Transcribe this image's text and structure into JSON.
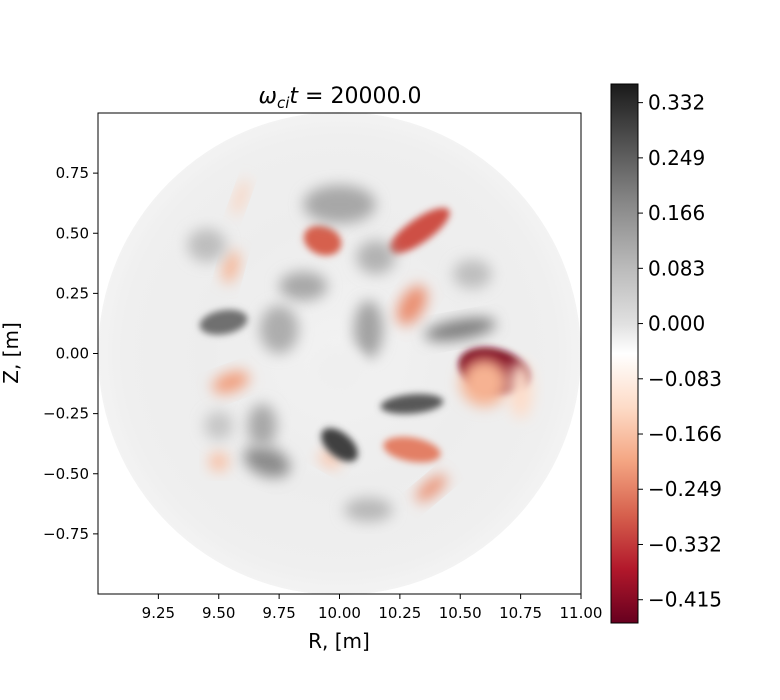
{
  "chart_data": {
    "type": "heatmap",
    "title": {
      "omega": "ω",
      "sub": "ci",
      "t": "t",
      "eq": " = 20000.0"
    },
    "xlabel": "R, [m]",
    "ylabel": "Z, [m]",
    "xlim": [
      9.0,
      11.0
    ],
    "ylim": [
      -1.0,
      1.0
    ],
    "xticks": [
      9.25,
      9.5,
      9.75,
      10.0,
      10.25,
      10.5,
      10.75,
      11.0
    ],
    "xtick_labels": [
      "9.25",
      "9.50",
      "9.75",
      "10.00",
      "10.25",
      "10.50",
      "10.75",
      "11.00"
    ],
    "yticks": [
      0.75,
      0.5,
      0.25,
      0.0,
      -0.25,
      -0.5,
      -0.75
    ],
    "ytick_labels": [
      "0.75",
      "0.50",
      "0.25",
      "0.00",
      "−0.25",
      "−0.50",
      "−0.75"
    ],
    "domain": {
      "shape": "circle",
      "center": [
        10.0,
        0.0
      ],
      "radius": 1.0
    },
    "colorbar": {
      "min": -0.45,
      "max": 0.36,
      "ticks": [
        0.332,
        0.249,
        0.166,
        0.083,
        0.0,
        -0.083,
        -0.166,
        -0.249,
        -0.332,
        -0.415
      ],
      "tick_labels": [
        "0.332",
        "0.249",
        "0.166",
        "0.083",
        "0.000",
        "−0.083",
        "−0.166",
        "−0.249",
        "−0.332",
        "−0.415"
      ],
      "colormap": "RdGy",
      "colors": {
        "max": "#1a1a1a",
        "mid": "#ffffff",
        "min": "#67001f"
      }
    },
    "features": [
      {
        "kind": "negative",
        "center": [
          10.64,
          -0.07
        ],
        "rx": 0.15,
        "ry": 0.09,
        "angle": 15,
        "value": -0.42
      },
      {
        "kind": "negative",
        "center": [
          10.6,
          -0.12
        ],
        "rx": 0.1,
        "ry": 0.1,
        "angle": 0,
        "value": -0.15
      },
      {
        "kind": "negative",
        "center": [
          10.33,
          0.51
        ],
        "rx": 0.15,
        "ry": 0.05,
        "angle": -35,
        "value": -0.28
      },
      {
        "kind": "negative",
        "center": [
          9.93,
          0.47
        ],
        "rx": 0.08,
        "ry": 0.06,
        "angle": 20,
        "value": -0.26
      },
      {
        "kind": "negative",
        "center": [
          10.3,
          0.2
        ],
        "rx": 0.09,
        "ry": 0.05,
        "angle": -60,
        "value": -0.2
      },
      {
        "kind": "negative",
        "center": [
          10.3,
          -0.4
        ],
        "rx": 0.12,
        "ry": 0.05,
        "angle": 10,
        "value": -0.22
      },
      {
        "kind": "negative",
        "center": [
          10.38,
          -0.56
        ],
        "rx": 0.08,
        "ry": 0.03,
        "angle": -40,
        "value": -0.2
      },
      {
        "kind": "negative",
        "center": [
          9.55,
          -0.12
        ],
        "rx": 0.08,
        "ry": 0.04,
        "angle": -20,
        "value": -0.18
      },
      {
        "kind": "negative",
        "center": [
          9.55,
          0.36
        ],
        "rx": 0.07,
        "ry": 0.03,
        "angle": -75,
        "value": -0.15
      },
      {
        "kind": "negative",
        "center": [
          9.59,
          0.65
        ],
        "rx": 0.08,
        "ry": 0.02,
        "angle": -70,
        "value": -0.1
      },
      {
        "kind": "negative",
        "center": [
          9.5,
          -0.45
        ],
        "rx": 0.04,
        "ry": 0.04,
        "angle": 0,
        "value": -0.13
      },
      {
        "kind": "negative",
        "center": [
          9.96,
          -0.44
        ],
        "rx": 0.05,
        "ry": 0.03,
        "angle": 30,
        "value": -0.12
      },
      {
        "kind": "negative",
        "center": [
          10.75,
          -0.15
        ],
        "rx": 0.05,
        "ry": 0.12,
        "angle": 0,
        "value": -0.08
      },
      {
        "kind": "positive",
        "center": [
          10.0,
          -0.38
        ],
        "rx": 0.09,
        "ry": 0.05,
        "angle": 40,
        "value": 0.3
      },
      {
        "kind": "positive",
        "center": [
          10.3,
          -0.21
        ],
        "rx": 0.13,
        "ry": 0.04,
        "angle": -5,
        "value": 0.26
      },
      {
        "kind": "positive",
        "center": [
          9.52,
          0.13
        ],
        "rx": 0.1,
        "ry": 0.05,
        "angle": -10,
        "value": 0.22
      },
      {
        "kind": "positive",
        "center": [
          10.5,
          0.1
        ],
        "rx": 0.15,
        "ry": 0.04,
        "angle": -10,
        "value": 0.2
      },
      {
        "kind": "positive",
        "center": [
          9.7,
          -0.45
        ],
        "rx": 0.1,
        "ry": 0.06,
        "angle": 20,
        "value": 0.17
      },
      {
        "kind": "positive",
        "center": [
          10.0,
          0.62
        ],
        "rx": 0.15,
        "ry": 0.08,
        "angle": 0,
        "value": 0.12
      },
      {
        "kind": "positive",
        "center": [
          9.85,
          0.28
        ],
        "rx": 0.1,
        "ry": 0.06,
        "angle": 0,
        "value": 0.12
      },
      {
        "kind": "positive",
        "center": [
          10.12,
          0.1
        ],
        "rx": 0.06,
        "ry": 0.12,
        "angle": 0,
        "value": 0.13
      },
      {
        "kind": "positive",
        "center": [
          10.15,
          0.4
        ],
        "rx": 0.08,
        "ry": 0.07,
        "angle": 0,
        "value": 0.1
      },
      {
        "kind": "positive",
        "center": [
          9.75,
          0.1
        ],
        "rx": 0.08,
        "ry": 0.1,
        "angle": 0,
        "value": 0.11
      },
      {
        "kind": "positive",
        "center": [
          9.45,
          0.45
        ],
        "rx": 0.08,
        "ry": 0.07,
        "angle": 0,
        "value": 0.08
      },
      {
        "kind": "positive",
        "center": [
          10.12,
          -0.65
        ],
        "rx": 0.1,
        "ry": 0.05,
        "angle": 0,
        "value": 0.09
      },
      {
        "kind": "positive",
        "center": [
          9.68,
          -0.3
        ],
        "rx": 0.06,
        "ry": 0.09,
        "angle": 0,
        "value": 0.12
      },
      {
        "kind": "positive",
        "center": [
          9.5,
          -0.3
        ],
        "rx": 0.06,
        "ry": 0.06,
        "angle": 0,
        "value": 0.07
      },
      {
        "kind": "positive",
        "center": [
          10.55,
          0.33
        ],
        "rx": 0.08,
        "ry": 0.06,
        "angle": 0,
        "value": 0.08
      },
      {
        "kind": "positive",
        "center": [
          10.0,
          -0.07
        ],
        "rx": 0.11,
        "ry": 0.1,
        "angle": 0,
        "value": 0.02
      }
    ]
  }
}
